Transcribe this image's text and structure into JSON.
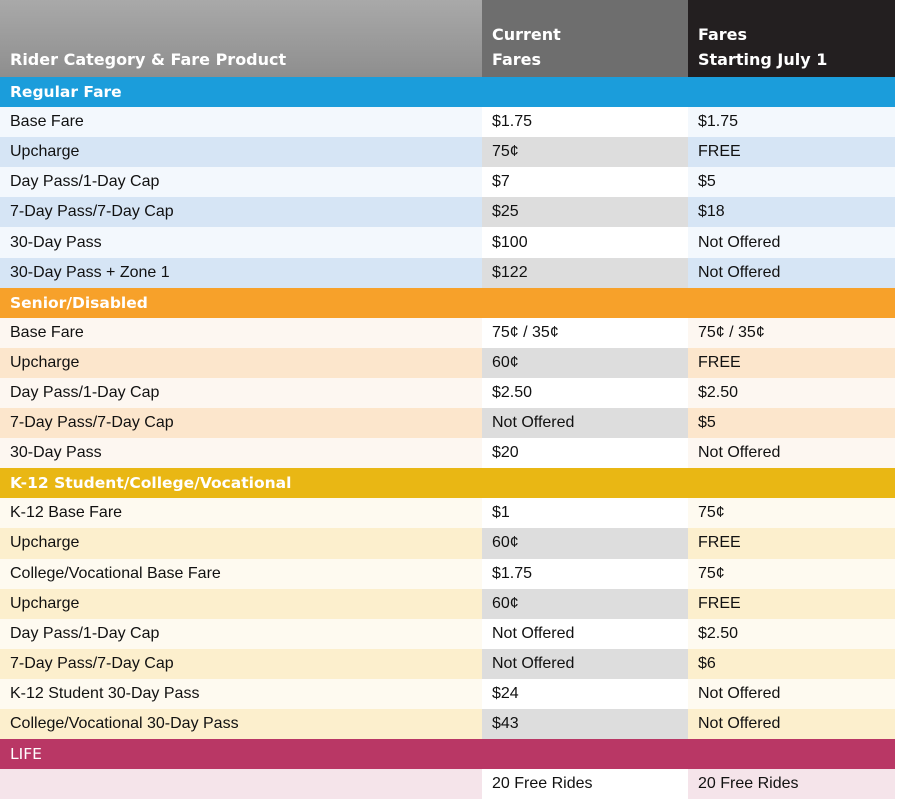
{
  "header": {
    "category": "Rider Category & Fare Product",
    "current": "Current\nFares",
    "new": "Fares\nStarting July 1"
  },
  "colors": {
    "regular": "#1b9ddb",
    "senior": "#f7a12a",
    "student": "#e9b714",
    "life": "#b93765",
    "current_header": "#6e6e6e",
    "new_header": "#231f20"
  },
  "sections": [
    {
      "key": "regular",
      "title": "Regular Fare",
      "rows": [
        {
          "product": "Base Fare",
          "current": "$1.75",
          "new": "$1.75"
        },
        {
          "product": "Upcharge",
          "current": "75¢",
          "new": "FREE"
        },
        {
          "product": "Day Pass/1-Day Cap",
          "current": "$7",
          "new": "$5"
        },
        {
          "product": "7-Day Pass/7-Day Cap",
          "current": "$25",
          "new": "$18"
        },
        {
          "product": "30-Day Pass",
          "current": "$100",
          "new": "Not Offered"
        },
        {
          "product": "30-Day Pass + Zone 1",
          "current": "$122",
          "new": "Not Offered"
        }
      ]
    },
    {
      "key": "senior",
      "title": "Senior/Disabled",
      "rows": [
        {
          "product": "Base Fare",
          "current": "75¢ / 35¢",
          "new": "75¢ / 35¢"
        },
        {
          "product": "Upcharge",
          "current": "60¢",
          "new": "FREE"
        },
        {
          "product": "Day Pass/1-Day Cap",
          "current": "$2.50",
          "new": "$2.50"
        },
        {
          "product": "7-Day Pass/7-Day Cap",
          "current": "Not Offered",
          "new": "$5"
        },
        {
          "product": "30-Day Pass",
          "current": "$20",
          "new": "Not Offered"
        }
      ]
    },
    {
      "key": "student",
      "title": "K-12 Student/College/Vocational",
      "rows": [
        {
          "product": "K-12 Base Fare",
          "current": "$1",
          "new": "75¢"
        },
        {
          "product": "Upcharge",
          "current": "60¢",
          "new": "FREE"
        },
        {
          "product": "College/Vocational Base Fare",
          "current": "$1.75",
          "new": "75¢"
        },
        {
          "product": "Upcharge",
          "current": "60¢",
          "new": "FREE"
        },
        {
          "product": "Day Pass/1-Day Cap",
          "current": "Not Offered",
          "new": "$2.50"
        },
        {
          "product": "7-Day Pass/7-Day Cap",
          "current": "Not Offered",
          "new": "$6"
        },
        {
          "product": "K-12 Student 30-Day Pass",
          "current": "$24",
          "new": "Not Offered"
        },
        {
          "product": "College/Vocational 30-Day Pass",
          "current": "$43",
          "new": "Not Offered"
        }
      ]
    },
    {
      "key": "life",
      "title": "LIFE",
      "rows": [
        {
          "product": "",
          "current": "20 Free Rides",
          "new": "20 Free Rides"
        }
      ]
    }
  ]
}
